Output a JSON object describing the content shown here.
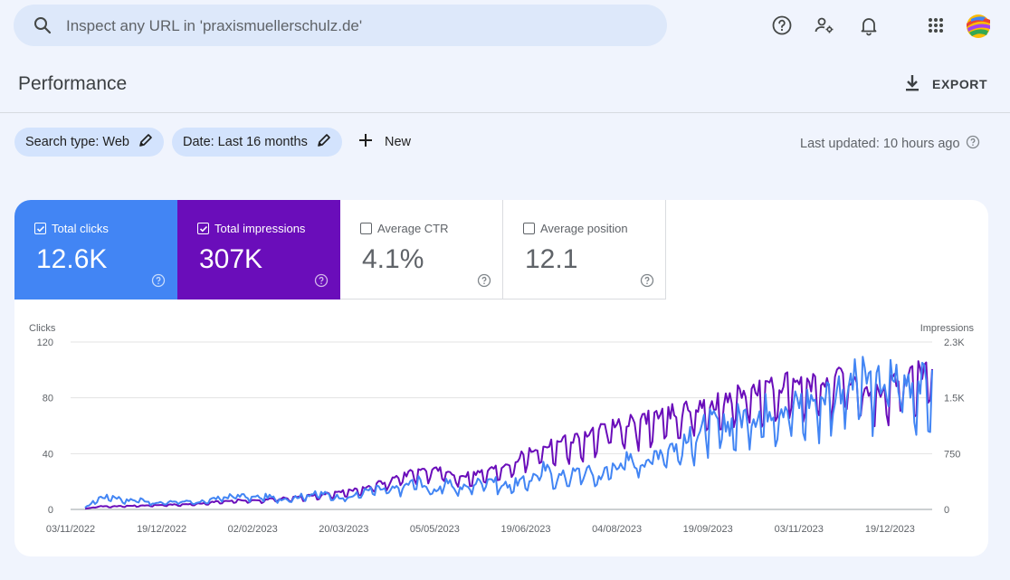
{
  "search": {
    "placeholder": "Inspect any URL in 'praxismuellerschulz.de'"
  },
  "header": {
    "title": "Performance",
    "export_label": "EXPORT"
  },
  "filters": {
    "search_type": "Search type: Web",
    "date": "Date: Last 16 months",
    "new_label": "New",
    "last_updated": "Last updated: 10 hours ago"
  },
  "metrics": [
    {
      "label": "Total clicks",
      "value": "12.6K",
      "checked": true,
      "color": "#4285f4"
    },
    {
      "label": "Total impressions",
      "value": "307K",
      "checked": true,
      "color": "#6a0dba"
    },
    {
      "label": "Average CTR",
      "value": "4.1%",
      "checked": false
    },
    {
      "label": "Average position",
      "value": "12.1",
      "checked": false
    }
  ],
  "colors": {
    "clicks": "#4285f4",
    "impressions": "#6a0dba",
    "chip": "#d3e3fd"
  },
  "icons": [
    "search-icon",
    "help-icon",
    "manage-users-icon",
    "bell-icon",
    "apps-grid-icon",
    "product-logo",
    "download-icon",
    "edit-icon",
    "plus-icon"
  ],
  "chart_data": {
    "type": "line",
    "ylabel": "Clicks",
    "y2label": "Impressions",
    "ylim": [
      0,
      120
    ],
    "y2lim": [
      0,
      2300
    ],
    "yticks": [
      "0",
      "40",
      "80",
      "120"
    ],
    "y2ticks": [
      "0",
      "750",
      "1.5K",
      "2.3K"
    ],
    "xticks": [
      "03/11/2022",
      "19/12/2022",
      "02/02/2023",
      "20/03/2023",
      "05/05/2023",
      "19/06/2023",
      "04/08/2023",
      "19/09/2023",
      "03/11/2023",
      "19/12/2023"
    ],
    "x_start": "2022-11-03",
    "x_end": "2024-01-09",
    "grid": true,
    "series": [
      {
        "name": "Clicks",
        "axis": "left",
        "weekly_values": [
          1,
          8,
          9,
          6,
          7,
          4,
          5,
          6,
          4,
          7,
          8,
          10,
          8,
          9,
          7,
          8,
          10,
          11,
          9,
          8,
          12,
          14,
          13,
          16,
          20,
          12,
          18,
          14,
          17,
          22,
          16,
          18,
          20,
          28,
          22,
          24,
          27,
          22,
          30,
          34,
          32,
          38,
          44,
          42,
          52,
          58,
          55,
          62,
          64,
          68,
          72,
          70,
          74,
          76,
          82,
          85,
          88,
          84,
          90,
          88,
          86,
          82
        ]
      },
      {
        "name": "Impressions",
        "axis": "right",
        "weekly_values": [
          10,
          40,
          40,
          45,
          50,
          55,
          60,
          65,
          70,
          90,
          110,
          120,
          115,
          130,
          140,
          150,
          170,
          190,
          210,
          240,
          280,
          330,
          380,
          450,
          500,
          520,
          480,
          440,
          460,
          500,
          560,
          640,
          760,
          820,
          880,
          900,
          950,
          1000,
          1080,
          1100,
          1150,
          1220,
          1250,
          1280,
          1320,
          1360,
          1400,
          1500,
          1520,
          1560,
          1600,
          1620,
          1580,
          1640,
          1700,
          1660,
          1560,
          1500,
          1620,
          1680,
          1800,
          1750
        ]
      }
    ]
  }
}
